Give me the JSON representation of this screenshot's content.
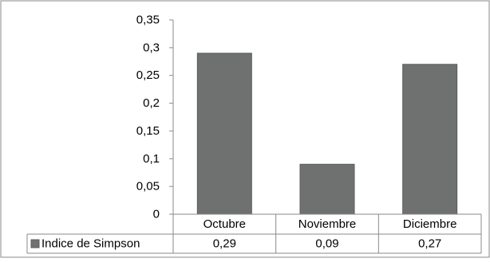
{
  "chart_data": {
    "type": "bar",
    "categories": [
      "Octubre",
      "Noviembre",
      "Diciembre"
    ],
    "series": [
      {
        "name": "Indice de Simpson",
        "values": [
          0.29,
          0.09,
          0.27
        ],
        "color": "#6e716f"
      }
    ],
    "value_labels": [
      "0,29",
      "0,09",
      "0,27"
    ],
    "y_ticks": [
      "0",
      "0,05",
      "0,1",
      "0,15",
      "0,2",
      "0,25",
      "0,3",
      "0,35"
    ],
    "ylim": [
      0,
      0.35
    ],
    "grid": false,
    "legend": "data-table",
    "title": "",
    "xlabel": "",
    "ylabel": ""
  }
}
